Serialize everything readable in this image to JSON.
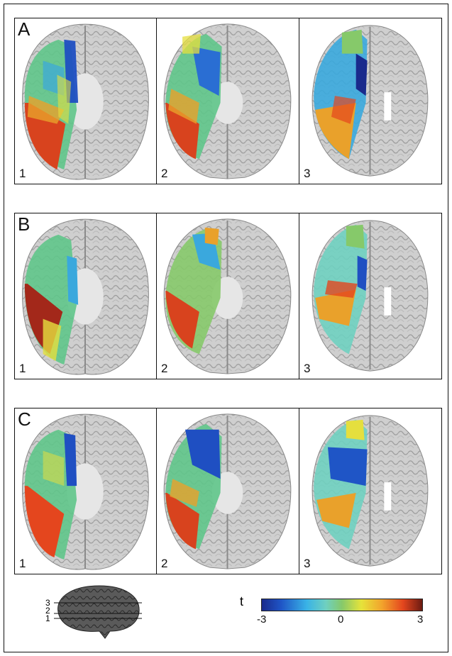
{
  "rows": [
    {
      "letter": "A",
      "panels": [
        "1",
        "2",
        "3"
      ]
    },
    {
      "letter": "B",
      "panels": [
        "1",
        "2",
        "3"
      ]
    },
    {
      "letter": "C",
      "panels": [
        "1",
        "2",
        "3"
      ]
    }
  ],
  "mini_brain": {
    "lines": [
      "3",
      "2",
      "1"
    ]
  },
  "colorbar": {
    "label": "t",
    "ticks": [
      "-3",
      "0",
      "3"
    ],
    "colors": [
      "#1a2a8c",
      "#39b3e6",
      "#86c96a",
      "#e6e33a",
      "#e4461e",
      "#6b1b12"
    ]
  }
}
